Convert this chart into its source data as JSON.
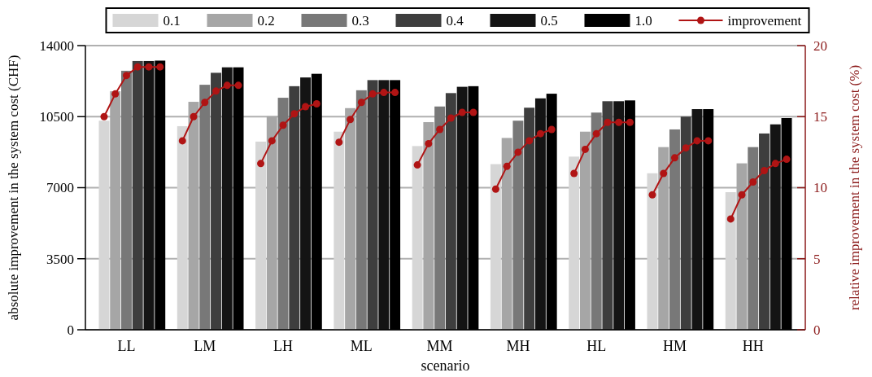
{
  "chart_data": {
    "type": "bar",
    "stacked": true,
    "xlabel": "scenario",
    "ylabel": "absolute improvement in the system cost (CHF)",
    "y2label": "relative improvement in the system cost (%)",
    "categories": [
      null,
      null,
      "LL",
      null,
      null,
      null,
      null,
      null,
      null,
      "LM",
      null,
      null,
      null,
      null,
      null,
      null,
      "LH",
      null,
      null,
      null,
      null,
      null,
      null,
      "ML",
      null,
      null,
      null,
      null,
      null,
      null,
      "MM",
      null,
      null,
      null,
      null,
      null,
      null,
      "MH",
      null,
      null,
      null,
      null,
      null,
      null,
      "HL",
      null,
      null,
      null,
      null,
      null,
      null,
      "HM",
      null,
      null,
      null,
      null,
      null,
      null,
      "HH",
      null,
      null,
      null
    ],
    "ylim": [
      0,
      14000
    ],
    "yticks": [
      0,
      3500,
      7000,
      10500,
      14000
    ],
    "y2lim": [
      0,
      20
    ],
    "y2ticks": [
      0,
      5,
      10,
      15,
      20
    ],
    "grid": "y",
    "legend": "top",
    "marker": "circle",
    "line_style": "solid",
    "series": [
      {
        "name": "0.1",
        "color": "#d6d6d6",
        "values": [
          10300,
          null,
          null,
          null,
          null,
          null,
          null,
          10030,
          null,
          null,
          null,
          null,
          null,
          null,
          9270,
          null,
          null,
          null,
          null,
          null,
          null,
          9760,
          null,
          null,
          null,
          null,
          null,
          null,
          9050,
          null,
          null,
          null,
          null,
          null,
          null,
          8160,
          null,
          null,
          null,
          null,
          null,
          null,
          8530,
          null,
          null,
          null,
          null,
          null,
          null,
          7710,
          null,
          null,
          null,
          null,
          null,
          null,
          6780,
          null,
          null,
          null,
          null,
          null
        ]
      },
      {
        "name": "0.2",
        "color": "#a6a6a6",
        "values": [
          null,
          11750,
          null,
          null,
          null,
          null,
          null,
          null,
          11230,
          null,
          null,
          null,
          null,
          null,
          null,
          10520,
          null,
          null,
          null,
          null,
          null,
          null,
          10920,
          null,
          null,
          null,
          null,
          null,
          null,
          10230,
          null,
          null,
          null,
          null,
          null,
          null,
          9450,
          null,
          null,
          null,
          null,
          null,
          null,
          9760,
          null,
          null,
          null,
          null,
          null,
          null,
          9000,
          null,
          null,
          null,
          null,
          null,
          null,
          8200,
          null,
          null,
          null,
          null
        ]
      },
      {
        "name": "0.3",
        "color": "#787878",
        "values": [
          null,
          null,
          12760,
          null,
          null,
          null,
          null,
          null,
          null,
          12070,
          null,
          null,
          null,
          null,
          null,
          null,
          11430,
          null,
          null,
          null,
          null,
          null,
          null,
          11800,
          null,
          null,
          null,
          null,
          null,
          null,
          11000,
          null,
          null,
          null,
          null,
          null,
          null,
          10300,
          null,
          null,
          null,
          null,
          null,
          null,
          10700,
          null,
          null,
          null,
          null,
          null,
          null,
          9870,
          null,
          null,
          null,
          null,
          null,
          null,
          9000,
          null,
          null,
          null
        ]
      },
      {
        "name": "0.4",
        "color": "#3e3e3e",
        "values": [
          null,
          null,
          null,
          13240,
          null,
          null,
          null,
          null,
          null,
          null,
          12660,
          null,
          null,
          null,
          null,
          null,
          null,
          12000,
          null,
          null,
          null,
          null,
          null,
          null,
          12300,
          null,
          null,
          null,
          null,
          null,
          null,
          11660,
          null,
          null,
          null,
          null,
          null,
          null,
          10940,
          null,
          null,
          null,
          null,
          null,
          null,
          11260,
          null,
          null,
          null,
          null,
          null,
          null,
          10500,
          null,
          null,
          null,
          null,
          null,
          null,
          9670,
          null,
          null
        ]
      },
      {
        "name": "0.5",
        "color": "#141414",
        "values": [
          null,
          null,
          null,
          null,
          13240,
          null,
          null,
          null,
          null,
          null,
          null,
          12930,
          null,
          null,
          null,
          null,
          null,
          null,
          12430,
          null,
          null,
          null,
          null,
          null,
          null,
          12300,
          null,
          null,
          null,
          null,
          null,
          null,
          11970,
          null,
          null,
          null,
          null,
          null,
          null,
          11400,
          null,
          null,
          null,
          null,
          null,
          null,
          11260,
          null,
          null,
          null,
          null,
          null,
          null,
          10870,
          null,
          null,
          null,
          null,
          null,
          null,
          10120,
          null
        ]
      },
      {
        "name": "1.0",
        "color": "#000000",
        "values": [
          null,
          null,
          null,
          null,
          null,
          13260,
          null,
          null,
          null,
          null,
          null,
          null,
          12930,
          null,
          null,
          null,
          null,
          null,
          null,
          12610,
          null,
          null,
          null,
          null,
          null,
          null,
          12300,
          null,
          null,
          null,
          null,
          null,
          null,
          12000,
          null,
          null,
          null,
          null,
          null,
          null,
          11630,
          null,
          null,
          null,
          null,
          null,
          null,
          11300,
          null,
          null,
          null,
          null,
          null,
          null,
          10870,
          null,
          null,
          null,
          null,
          null,
          null,
          10430
        ]
      },
      {
        "name": "improvement",
        "type": "line",
        "axis": "y2",
        "color": "#b01414",
        "values": [
          15.0,
          16.6,
          17.9,
          18.5,
          18.5,
          18.5,
          null,
          13.3,
          15.0,
          16.0,
          16.8,
          17.2,
          17.2,
          null,
          11.7,
          13.3,
          14.4,
          15.2,
          15.7,
          15.9,
          null,
          13.2,
          14.8,
          16.0,
          16.6,
          16.7,
          16.7,
          null,
          11.6,
          13.1,
          14.1,
          14.9,
          15.3,
          15.3,
          null,
          9.9,
          11.5,
          12.5,
          13.3,
          13.8,
          14.1,
          null,
          11.0,
          12.7,
          13.8,
          14.6,
          14.6,
          14.6,
          null,
          9.5,
          11.0,
          12.1,
          12.8,
          13.3,
          13.3,
          null,
          7.8,
          9.5,
          10.4,
          11.2,
          11.7,
          12.0
        ]
      }
    ]
  }
}
